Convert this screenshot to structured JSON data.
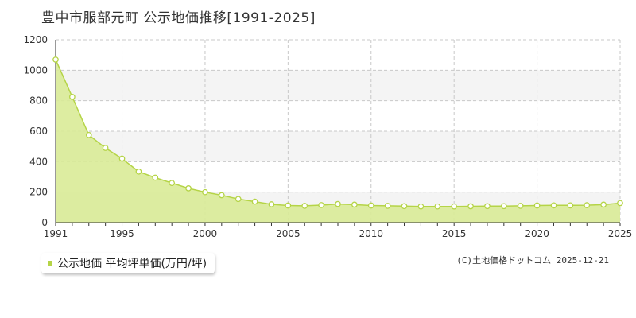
{
  "page": {
    "title": "豊中市服部元町 公示地価推移[1991-2025]"
  },
  "legend": {
    "label": "公示地価 平均坪単価(万円/坪)",
    "color": "#b5d447"
  },
  "credit": "(C)土地価格ドットコム 2025-12-21",
  "chart_data": {
    "type": "area",
    "title": "豊中市服部元町 公示地価推移[1991-2025]",
    "xlabel": "",
    "ylabel": "",
    "x": [
      1991,
      1992,
      1993,
      1994,
      1995,
      1996,
      1997,
      1998,
      1999,
      2000,
      2001,
      2002,
      2003,
      2004,
      2005,
      2006,
      2007,
      2008,
      2009,
      2010,
      2011,
      2012,
      2013,
      2014,
      2015,
      2016,
      2017,
      2018,
      2019,
      2020,
      2021,
      2022,
      2023,
      2024,
      2025
    ],
    "series": [
      {
        "name": "公示地価 平均坪単価(万円/坪)",
        "values": [
          1070,
          825,
          575,
          490,
          420,
          335,
          295,
          260,
          225,
          200,
          180,
          155,
          138,
          120,
          112,
          110,
          115,
          122,
          118,
          112,
          110,
          108,
          106,
          106,
          106,
          107,
          108,
          108,
          110,
          112,
          113,
          113,
          114,
          118,
          128
        ]
      }
    ],
    "ylim": [
      0,
      1200
    ],
    "yticks": [
      "0",
      "200",
      "400",
      "600",
      "800",
      "1000",
      "1200"
    ],
    "xticks": [
      "1991",
      "1995",
      "2000",
      "2005",
      "2010",
      "2015",
      "2020",
      "2025"
    ],
    "grid": true,
    "colors": {
      "fill": "#d9eb97",
      "line": "#b5d447",
      "marker": "#ffffff",
      "grid": "#c8c8c8"
    }
  }
}
